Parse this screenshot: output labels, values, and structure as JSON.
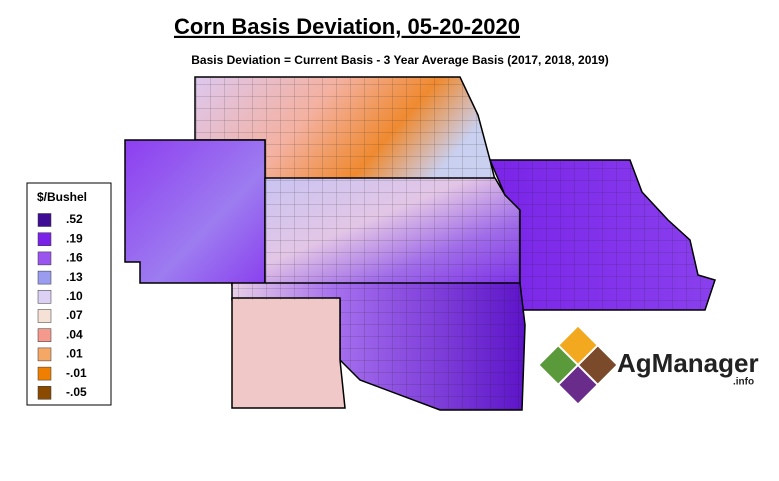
{
  "title": "Corn Basis Deviation, 05-20-2020",
  "subtitle": "Basis Deviation = Current Basis - 3 Year Average Basis (2017, 2018, 2019)",
  "legend": {
    "title": "$/Bushel",
    "items": [
      {
        "label": ".52",
        "color": "#3e0d93"
      },
      {
        "label": ".19",
        "color": "#7b22e8"
      },
      {
        "label": ".16",
        "color": "#9a55ee"
      },
      {
        "label": ".13",
        "color": "#9a9cf0"
      },
      {
        "label": ".10",
        "color": "#dcd0f4"
      },
      {
        "label": ".07",
        "color": "#f6e1d6"
      },
      {
        "label": ".04",
        "color": "#f4998c"
      },
      {
        "label": ".01",
        "color": "#f5a866"
      },
      {
        "label": "-.01",
        "color": "#ef7f00"
      },
      {
        "label": "-.05",
        "color": "#8a4b00"
      }
    ]
  },
  "logo": {
    "name": "AgManager",
    "suffix": ".info"
  }
}
